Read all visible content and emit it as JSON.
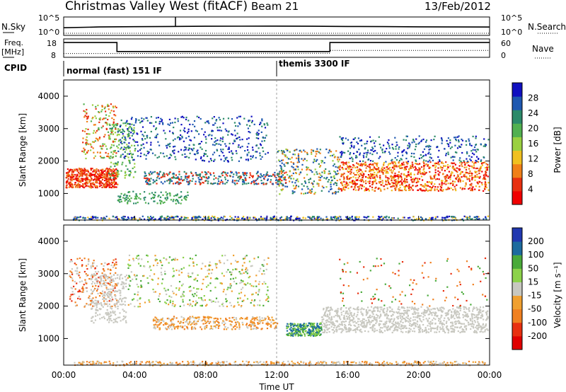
{
  "header": {
    "station": "Christmas Valley West (fitACF)",
    "beam": "Beam 21",
    "date": "13/Feb/2012"
  },
  "left_labels": {
    "nsky": "N.Sky",
    "nsky_ticks": [
      "10^5",
      "10^0"
    ],
    "freq": "Freq.",
    "freq_unit": "[MHz]",
    "freq_ticks": [
      "18",
      "8"
    ],
    "cpid": "CPID"
  },
  "right_labels": {
    "nsearch": "N.Search",
    "nsearch_ticks": [
      "10^5",
      "10^0"
    ],
    "nave": "Nave",
    "nave_ticks": [
      "60",
      "0"
    ]
  },
  "cpid_segments": [
    {
      "label": "normal (fast) 151 IF",
      "start": "00:00"
    },
    {
      "label": "themis 3300 IF",
      "start": "12:00"
    }
  ],
  "colors": {
    "velocity_scale": [
      "#2138b0",
      "#1d6b9e",
      "#4aaa3a",
      "#8cd24a",
      "#c8c8c0",
      "#f0a030",
      "#f08020",
      "#e83010",
      "#e00000"
    ],
    "power_scale": [
      "#1010c0",
      "#1e58b0",
      "#2c8a6a",
      "#52b050",
      "#9ad040",
      "#f0c020",
      "#f08018",
      "#e83010",
      "#f00000"
    ],
    "noise_line": "#000000"
  },
  "chart_data": [
    {
      "type": "line",
      "name": "N.Sky / N.Search noise",
      "title": "",
      "ylabel": "N.Sky",
      "y2label": "N.Search",
      "yscale": "log",
      "ylim": [
        1,
        100000
      ],
      "x": [
        "00:00",
        "02:00",
        "04:00",
        "06:00",
        "08:00",
        "10:00",
        "12:00",
        "14:00",
        "16:00",
        "18:00",
        "20:00",
        "22:00",
        "24:00"
      ],
      "series": [
        {
          "name": "N.Sky",
          "values": [
            100,
            180,
            220,
            260,
            300,
            320,
            340,
            300,
            260,
            230,
            200,
            180,
            170
          ]
        },
        {
          "name": "N.Search",
          "values": [
            2,
            2,
            2,
            2,
            2,
            2,
            2,
            2,
            2,
            2,
            2,
            2,
            2
          ]
        }
      ]
    },
    {
      "type": "line",
      "name": "Frequency / Nave",
      "ylabel": "Freq. [MHz]",
      "y2label": "Nave",
      "ylim": [
        8,
        18
      ],
      "y2lim": [
        0,
        60
      ],
      "x": [
        "00:00",
        "03:00",
        "03:00",
        "12:00",
        "15:00",
        "15:00",
        "24:00"
      ],
      "series": [
        {
          "name": "Freq.",
          "values": [
            16.3,
            16.3,
            11.0,
            11.0,
            11.0,
            16.3,
            16.3
          ]
        },
        {
          "name": "Nave",
          "values": [
            11,
            11,
            11,
            12,
            12,
            22,
            22
          ]
        }
      ]
    },
    {
      "type": "heatmap",
      "name": "Power",
      "ylabel": "Slant Range [km]",
      "yticks": [
        1000,
        2000,
        3000,
        4000
      ],
      "ylim": [
        180,
        4500
      ],
      "xticks": [
        "00:00",
        "04:00",
        "08:00",
        "12:00",
        "16:00",
        "20:00",
        "00:00"
      ],
      "colorbar_label": "Power [dB]",
      "colorbar_ticks": [
        "28",
        "24",
        "20",
        "16",
        "12",
        "8",
        "4"
      ],
      "colorbar_range": [
        0,
        30
      ]
    },
    {
      "type": "heatmap",
      "name": "Velocity",
      "ylabel": "Slant Range [km]",
      "xlabel": "Time UT",
      "yticks": [
        1000,
        2000,
        3000,
        4000
      ],
      "ylim": [
        180,
        4500
      ],
      "xticks": [
        "00:00",
        "04:00",
        "08:00",
        "12:00",
        "16:00",
        "20:00",
        "00:00"
      ],
      "colorbar_label": "Velocity [m s⁻¹]",
      "colorbar_ticks": [
        "200",
        "100",
        "50",
        "15",
        "-15",
        "-50",
        "-100",
        "-200"
      ],
      "colorbar_range": [
        -250,
        250
      ]
    }
  ]
}
